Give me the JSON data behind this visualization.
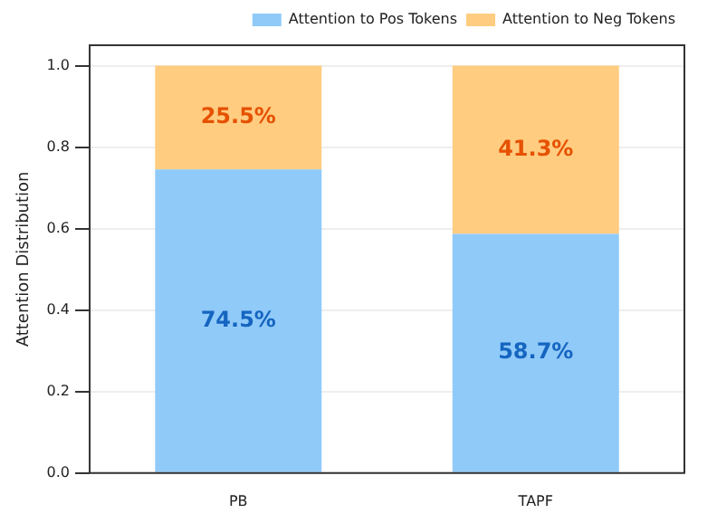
{
  "chart_data": {
    "type": "bar",
    "ylabel": "Attention Distribution",
    "categories": [
      "PB",
      "TAPF"
    ],
    "stacked": true,
    "series": [
      {
        "name": "Attention to Pos Tokens",
        "color": "#90caf9",
        "values": [
          0.745,
          0.587
        ],
        "value_labels": [
          "74.5%",
          "58.7%"
        ]
      },
      {
        "name": "Attention to Neg Tokens",
        "color": "#ffcc80",
        "values": [
          0.255,
          0.413
        ],
        "value_labels": [
          "25.5%",
          "41.3%"
        ]
      }
    ],
    "ylim": [
      0,
      1.05
    ],
    "yticks": [
      {
        "value": 0,
        "label": "0.0"
      },
      {
        "value": 0.2,
        "label": "0.2"
      },
      {
        "value": 0.4,
        "label": "0.4"
      },
      {
        "value": 0.6,
        "label": "0.6"
      },
      {
        "value": 0.8,
        "label": "0.8"
      },
      {
        "value": 1,
        "label": "1.0"
      }
    ],
    "grid": "y",
    "legend": "top right"
  }
}
